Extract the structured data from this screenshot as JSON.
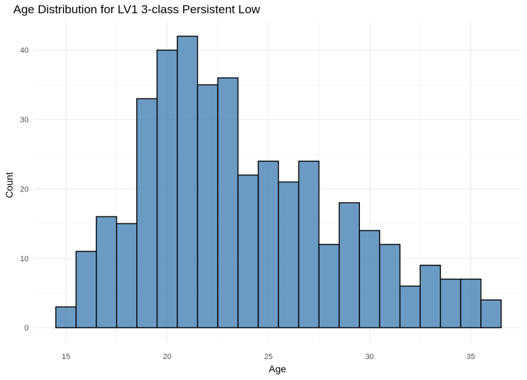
{
  "chart_data": {
    "type": "bar",
    "title": "Age Distribution for LV1 3-class Persistent Low",
    "xlabel": "Age",
    "ylabel": "Count",
    "bin_width": 1,
    "bins": [
      {
        "age": 15,
        "count": 3
      },
      {
        "age": 16,
        "count": 11
      },
      {
        "age": 17,
        "count": 16
      },
      {
        "age": 18,
        "count": 15
      },
      {
        "age": 19,
        "count": 33
      },
      {
        "age": 20,
        "count": 40
      },
      {
        "age": 21,
        "count": 42
      },
      {
        "age": 22,
        "count": 35
      },
      {
        "age": 23,
        "count": 36
      },
      {
        "age": 24,
        "count": 22
      },
      {
        "age": 25,
        "count": 24
      },
      {
        "age": 26,
        "count": 21
      },
      {
        "age": 27,
        "count": 24
      },
      {
        "age": 28,
        "count": 12
      },
      {
        "age": 29,
        "count": 18
      },
      {
        "age": 30,
        "count": 14
      },
      {
        "age": 31,
        "count": 12
      },
      {
        "age": 32,
        "count": 6
      },
      {
        "age": 33,
        "count": 9
      },
      {
        "age": 34,
        "count": 7
      },
      {
        "age": 35,
        "count": 7
      },
      {
        "age": 36,
        "count": 4
      }
    ],
    "xlim": [
      13.4,
      37.5
    ],
    "ylim": [
      -2.1,
      44.1
    ],
    "x_ticks": [
      15,
      20,
      25,
      30,
      35
    ],
    "x_tick_labels": [
      "15",
      "20",
      "25",
      "30",
      "35"
    ],
    "y_ticks": [
      0,
      10,
      20,
      30,
      40
    ],
    "y_tick_labels": [
      "0",
      "10",
      "20",
      "30",
      "40"
    ],
    "grid": true,
    "bar_fill": "#4682b4",
    "bar_outline": "#000000"
  }
}
